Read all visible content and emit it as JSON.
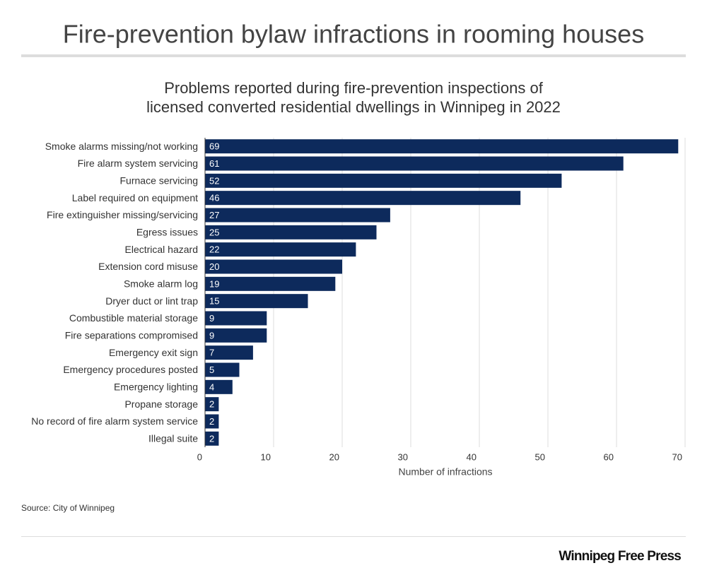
{
  "chart_data": {
    "type": "bar",
    "orientation": "horizontal",
    "title": "Fire-prevention bylaw infractions in rooming houses",
    "subtitle": [
      "Problems reported during fire-prevention inspections of",
      "licensed converted residential dwellings in Winnipeg in 2022"
    ],
    "categories": [
      "Smoke alarms missing/not working",
      "Fire alarm system servicing",
      "Furnace servicing",
      "Label required on equipment",
      "Fire extinguisher missing/servicing",
      "Egress issues",
      "Electrical hazard",
      "Extension cord misuse",
      "Smoke alarm log",
      "Dryer duct or lint trap",
      "Combustible material storage",
      "Fire separations compromised",
      "Emergency exit sign",
      "Emergency procedures posted",
      "Emergency lighting",
      "Propane storage",
      "No record of fire alarm system service",
      "Illegal suite"
    ],
    "values": [
      69,
      61,
      52,
      46,
      27,
      25,
      22,
      20,
      19,
      15,
      9,
      9,
      7,
      5,
      4,
      2,
      2,
      2
    ],
    "color": "#0d2a5c",
    "xlim": [
      0,
      70
    ],
    "xticks": [
      0,
      10,
      20,
      30,
      40,
      50,
      60,
      70
    ],
    "xlabel": "Number of infractions",
    "grid": true,
    "source": "Source: City of Winnipeg",
    "brand": "Winnipeg Free Press"
  }
}
